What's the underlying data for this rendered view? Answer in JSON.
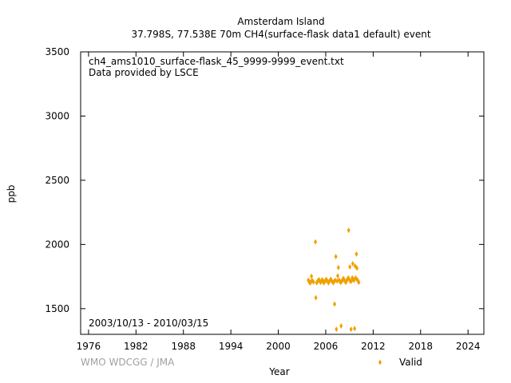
{
  "chart_data": {
    "type": "scatter",
    "title_line1": "Amsterdam Island",
    "title_line2": "37.798S, 77.538E 70m    CH4(surface-flask data1 default) event",
    "xlabel": "Year",
    "ylabel": "ppb",
    "xlim": [
      1975,
      2026
    ],
    "ylim": [
      1300,
      3500
    ],
    "xticks": [
      1976,
      1982,
      1988,
      1994,
      2000,
      2006,
      2012,
      2018,
      2024
    ],
    "yticks": [
      1500,
      2000,
      2500,
      3000,
      3500
    ],
    "info_line1": "ch4_ams1010_surface-flask_45_9999-9999_event.txt",
    "info_line2": "Data provided by LSCE",
    "date_range": "2003/10/13 - 2010/03/15",
    "watermark": "WMO WDCGG / JMA",
    "legend": {
      "placement": "bottom-right",
      "label": "Valid"
    },
    "grid": false,
    "marker_color": "#f0a000",
    "series": [
      {
        "name": "Valid",
        "points": [
          [
            2003.8,
            1722
          ],
          [
            2003.88,
            1712
          ],
          [
            2003.96,
            1705
          ],
          [
            2004.05,
            1700
          ],
          [
            2004.12,
            1710
          ],
          [
            2004.2,
            1752
          ],
          [
            2004.3,
            1718
          ],
          [
            2004.45,
            1708
          ],
          [
            2004.7,
            2020
          ],
          [
            2004.75,
            1585
          ],
          [
            2004.85,
            1702
          ],
          [
            2004.95,
            1712
          ],
          [
            2005.05,
            1720
          ],
          [
            2005.15,
            1725
          ],
          [
            2005.25,
            1715
          ],
          [
            2005.35,
            1705
          ],
          [
            2005.45,
            1712
          ],
          [
            2005.55,
            1725
          ],
          [
            2005.65,
            1718
          ],
          [
            2005.75,
            1702
          ],
          [
            2005.85,
            1708
          ],
          [
            2005.95,
            1718
          ],
          [
            2006.05,
            1728
          ],
          [
            2006.15,
            1720
          ],
          [
            2006.25,
            1710
          ],
          [
            2006.35,
            1702
          ],
          [
            2006.45,
            1712
          ],
          [
            2006.55,
            1722
          ],
          [
            2006.65,
            1728
          ],
          [
            2006.75,
            1718
          ],
          [
            2006.85,
            1708
          ],
          [
            2006.95,
            1702
          ],
          [
            2007.05,
            1712
          ],
          [
            2007.12,
            1535
          ],
          [
            2007.2,
            1720
          ],
          [
            2007.28,
            1905
          ],
          [
            2007.35,
            1340
          ],
          [
            2007.45,
            1715
          ],
          [
            2007.52,
            1755
          ],
          [
            2007.6,
            1820
          ],
          [
            2007.7,
            1722
          ],
          [
            2007.8,
            1712
          ],
          [
            2007.9,
            1705
          ],
          [
            2007.95,
            1365
          ],
          [
            2008.05,
            1715
          ],
          [
            2008.15,
            1728
          ],
          [
            2008.25,
            1735
          ],
          [
            2008.35,
            1722
          ],
          [
            2008.45,
            1712
          ],
          [
            2008.55,
            1705
          ],
          [
            2008.65,
            1718
          ],
          [
            2008.75,
            1730
          ],
          [
            2008.85,
            1740
          ],
          [
            2008.9,
            2110
          ],
          [
            2008.95,
            1730
          ],
          [
            2009.05,
            1825
          ],
          [
            2009.12,
            1712
          ],
          [
            2009.2,
            1340
          ],
          [
            2009.28,
            1718
          ],
          [
            2009.35,
            1740
          ],
          [
            2009.42,
            1850
          ],
          [
            2009.5,
            1730
          ],
          [
            2009.58,
            1720
          ],
          [
            2009.65,
            1345
          ],
          [
            2009.72,
            1832
          ],
          [
            2009.8,
            1740
          ],
          [
            2009.88,
            1925
          ],
          [
            2009.95,
            1815
          ],
          [
            2010.02,
            1722
          ],
          [
            2010.1,
            1715
          ],
          [
            2010.18,
            1705
          ]
        ]
      }
    ]
  }
}
